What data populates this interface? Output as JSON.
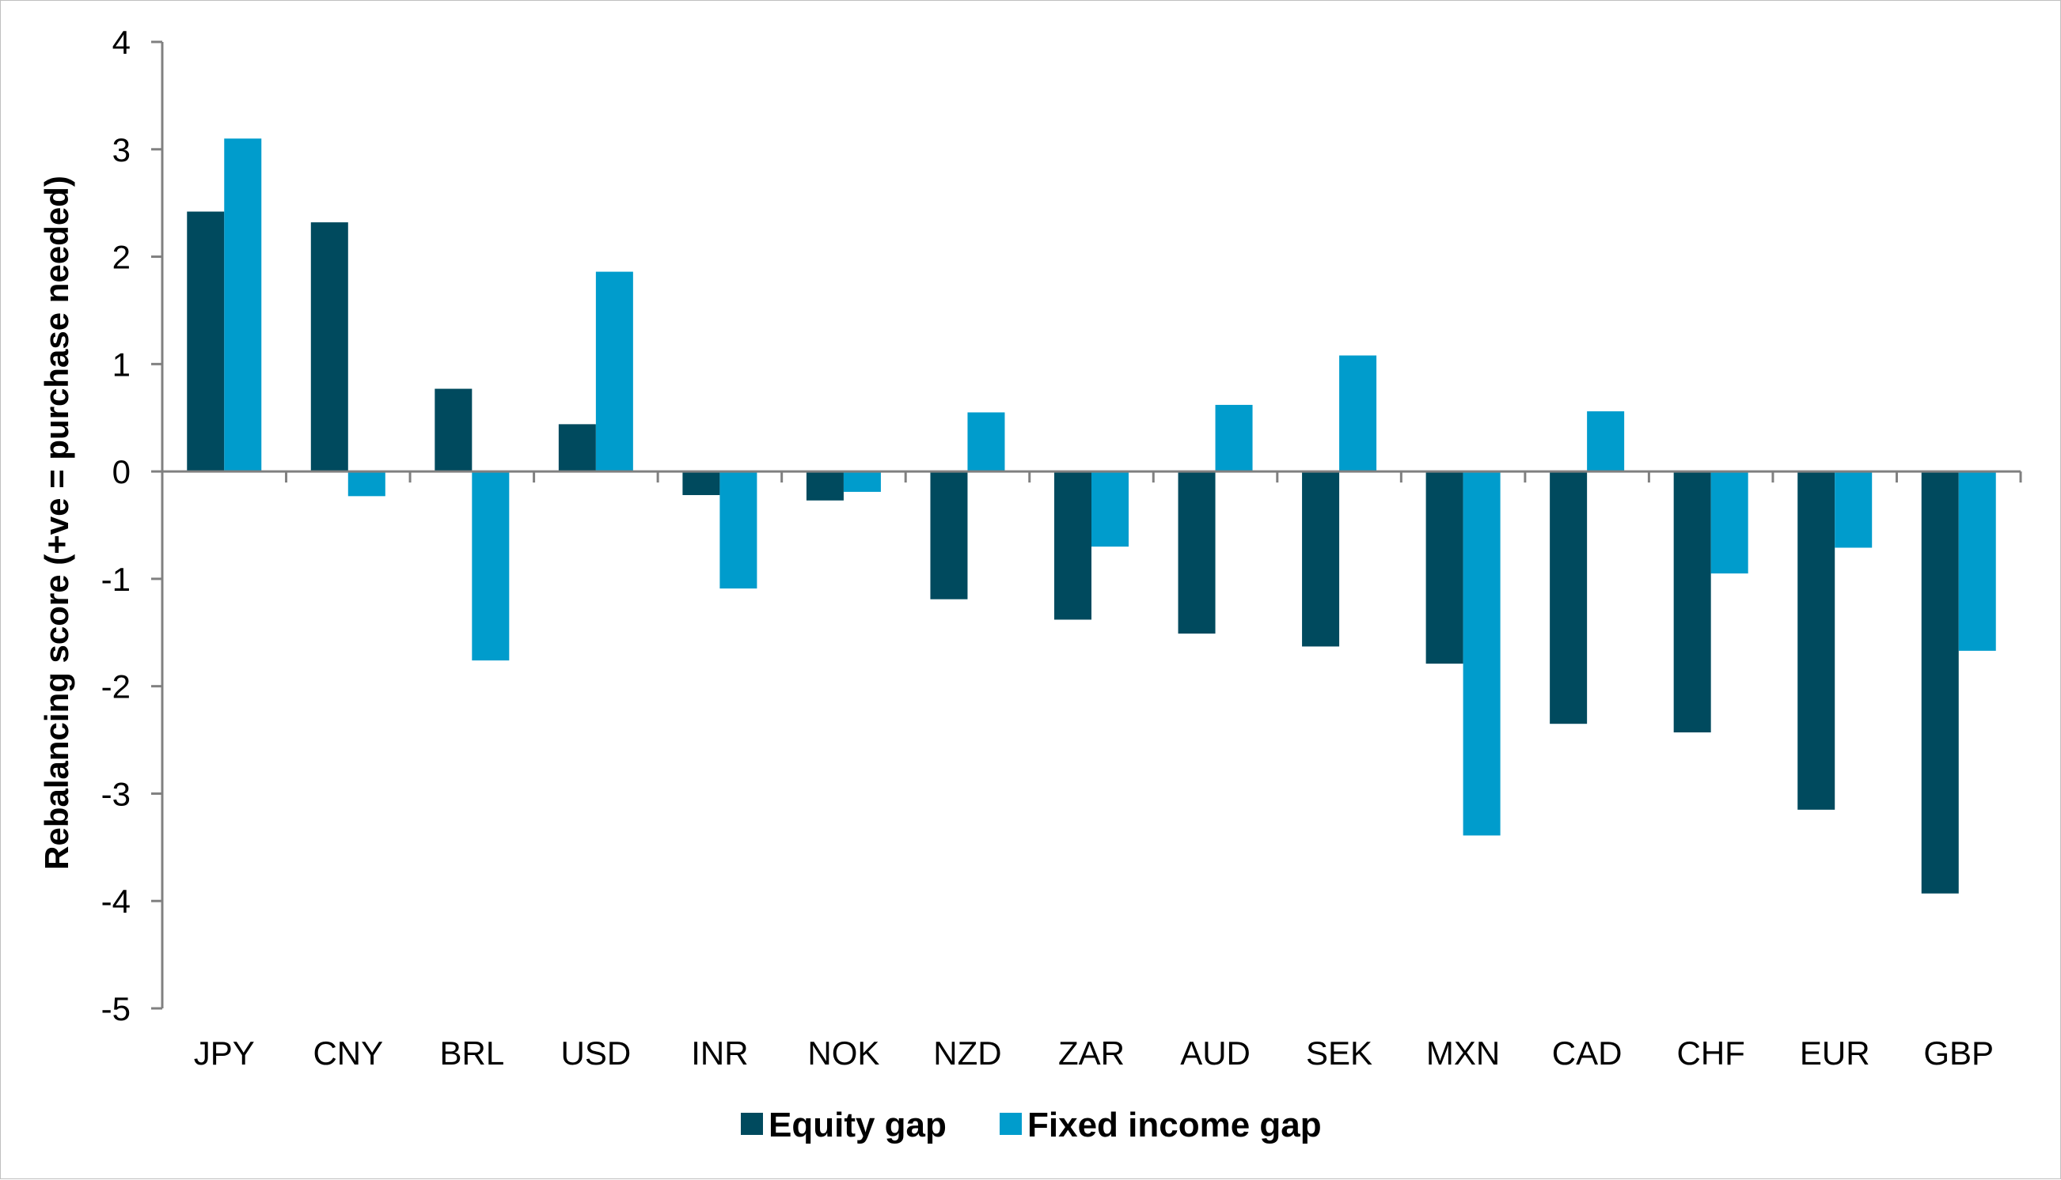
{
  "chart_data": {
    "type": "bar",
    "categories": [
      "JPY",
      "CNY",
      "BRL",
      "USD",
      "INR",
      "NOK",
      "NZD",
      "ZAR",
      "AUD",
      "SEK",
      "MXN",
      "CAD",
      "CHF",
      "EUR",
      "GBP"
    ],
    "series": [
      {
        "name": "Equity gap",
        "color": "#004a5e",
        "values": [
          2.42,
          2.32,
          0.77,
          0.44,
          -0.22,
          -0.27,
          -1.19,
          -1.38,
          -1.51,
          -1.63,
          -1.79,
          -2.35,
          -2.43,
          -3.15,
          -3.93
        ]
      },
      {
        "name": "Fixed income gap",
        "color": "#009ccc",
        "values": [
          3.1,
          -0.23,
          -1.76,
          1.86,
          -1.09,
          -0.19,
          0.55,
          -0.7,
          0.62,
          1.08,
          -3.39,
          0.56,
          -0.95,
          -0.71,
          -1.67
        ]
      }
    ],
    "title": "",
    "xlabel": "",
    "ylabel": "Rebalancing score (+ve = purchase needed)",
    "ylim": [
      -5,
      4
    ],
    "yticks": [
      "4",
      "3",
      "2",
      "1",
      "0",
      "-1",
      "-2",
      "-3",
      "-4",
      "-5"
    ],
    "ytick_values": [
      4,
      3,
      2,
      1,
      0,
      -1,
      -2,
      -3,
      -4,
      -5
    ],
    "grid": false,
    "legend_position": "bottom"
  }
}
